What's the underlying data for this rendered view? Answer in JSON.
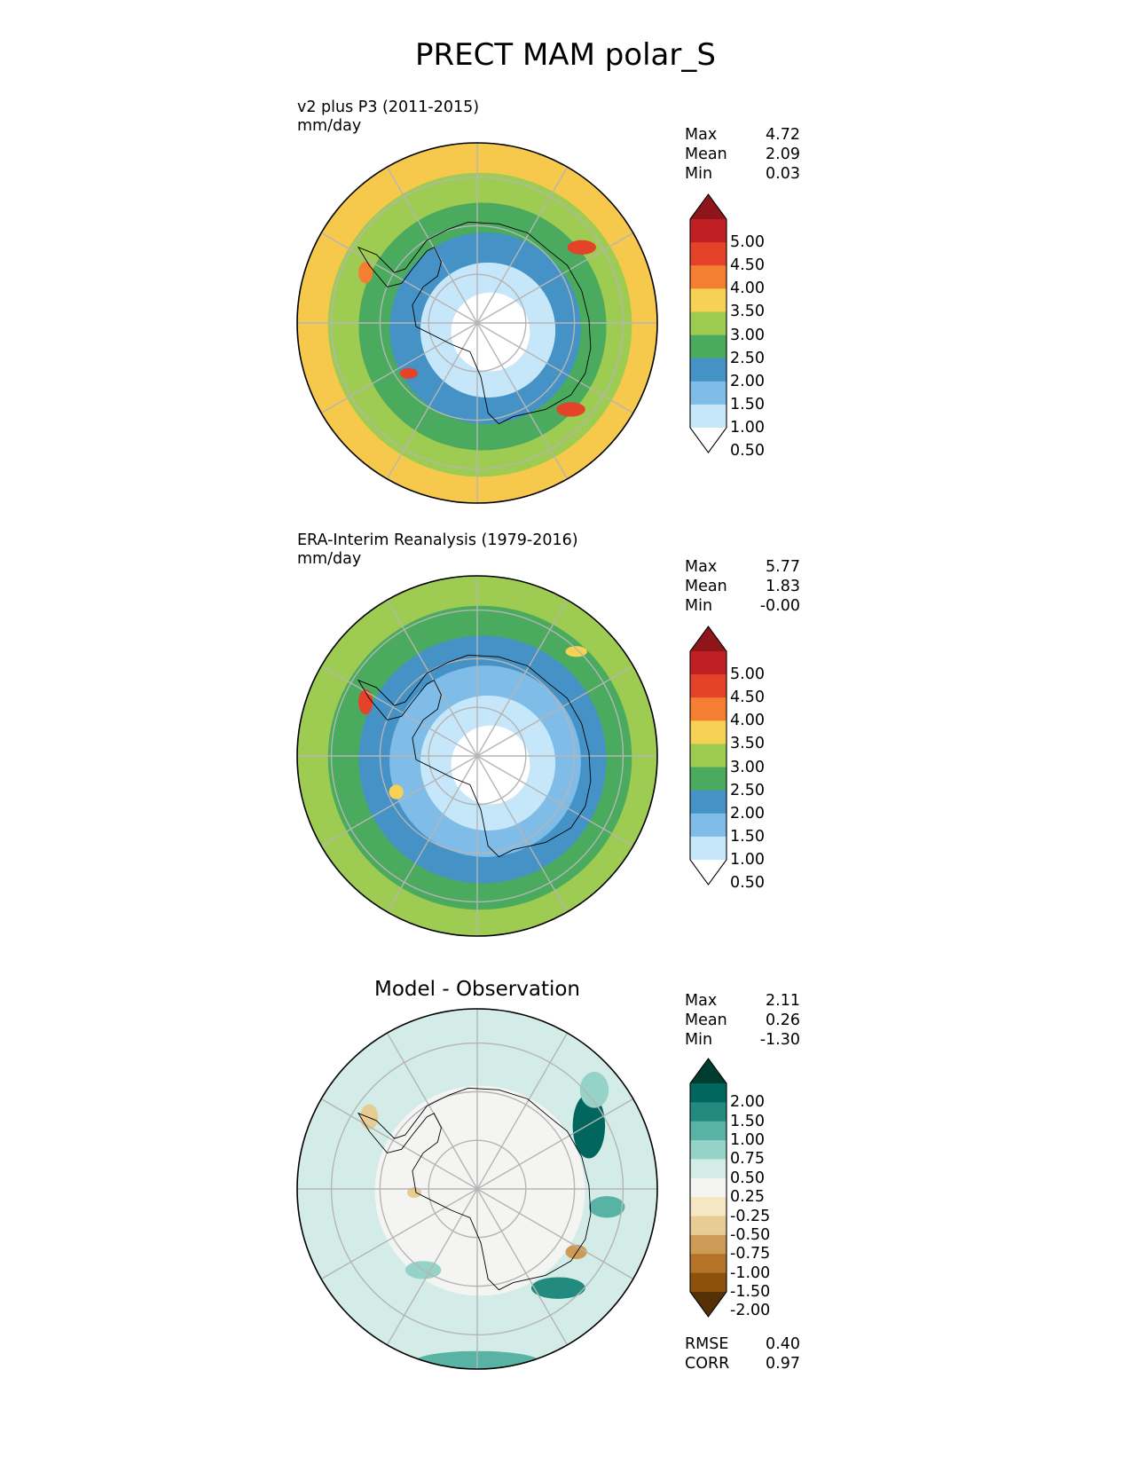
{
  "suptitle": "PRECT MAM polar_S",
  "chart_data": [
    {
      "type": "heatmap",
      "title": "v2 plus P3 (2011-2015)",
      "units": "mm/day",
      "projection": "south-polar-stereographic",
      "stats": [
        {
          "label": "Max",
          "value": "4.72"
        },
        {
          "label": "Mean",
          "value": "2.09"
        },
        {
          "label": "Min",
          "value": "0.03"
        }
      ],
      "colorbar": {
        "levels": [
          "0.50",
          "1.00",
          "1.50",
          "2.00",
          "2.50",
          "3.00",
          "3.50",
          "4.00",
          "4.50",
          "5.00"
        ],
        "colors": [
          "#ffffff",
          "#c6e7f9",
          "#7fbde8",
          "#4592c6",
          "#4aab5e",
          "#9ecb51",
          "#f7d153",
          "#f47f33",
          "#e4432a",
          "#c01f24",
          "#8e1519"
        ]
      },
      "rings": [
        {
          "lat": "-50°",
          "color": "#f6c94d"
        },
        {
          "lat": "-55°",
          "color": "#9ecb51"
        },
        {
          "lat": "-60°",
          "color": "#4aab5e"
        },
        {
          "lat": "-65°",
          "color": "#4592c6"
        },
        {
          "lat": "-70°",
          "color": "#c6e7f9"
        },
        {
          "lat": "-75°",
          "color": "#ffffff"
        }
      ]
    },
    {
      "type": "heatmap",
      "title": "ERA-Interim Reanalysis (1979-2016)",
      "units": "mm/day",
      "projection": "south-polar-stereographic",
      "stats": [
        {
          "label": "Max",
          "value": "5.77"
        },
        {
          "label": "Mean",
          "value": "1.83"
        },
        {
          "label": "Min",
          "value": "-0.00"
        }
      ],
      "colorbar": {
        "levels": [
          "0.50",
          "1.00",
          "1.50",
          "2.00",
          "2.50",
          "3.00",
          "3.50",
          "4.00",
          "4.50",
          "5.00"
        ],
        "colors": [
          "#ffffff",
          "#c6e7f9",
          "#7fbde8",
          "#4592c6",
          "#4aab5e",
          "#9ecb51",
          "#f7d153",
          "#f47f33",
          "#e4432a",
          "#c01f24",
          "#8e1519"
        ]
      },
      "rings": [
        {
          "lat": "-50°",
          "color": "#9ecb51"
        },
        {
          "lat": "-57°",
          "color": "#4aab5e"
        },
        {
          "lat": "-63°",
          "color": "#4592c6"
        },
        {
          "lat": "-67°",
          "color": "#7fbde8"
        },
        {
          "lat": "-71°",
          "color": "#c6e7f9"
        },
        {
          "lat": "-75°",
          "color": "#ffffff"
        }
      ]
    },
    {
      "type": "heatmap",
      "title": "Model - Observation",
      "units": "",
      "projection": "south-polar-stereographic",
      "stats": [
        {
          "label": "Max",
          "value": "2.11"
        },
        {
          "label": "Mean",
          "value": "0.26"
        },
        {
          "label": "Min",
          "value": "-1.30"
        }
      ],
      "metrics": [
        {
          "label": "RMSE",
          "value": "0.40"
        },
        {
          "label": "CORR",
          "value": "0.97"
        }
      ],
      "colorbar": {
        "levels": [
          "-2.00",
          "-1.50",
          "-1.00",
          "-0.75",
          "-0.50",
          "-0.25",
          "0.25",
          "0.50",
          "0.75",
          "1.00",
          "1.50",
          "2.00"
        ],
        "colors": [
          "#543005",
          "#8c510a",
          "#b37328",
          "#cd9b55",
          "#e7cd94",
          "#f5e6c4",
          "#f4f4f2",
          "#d3ece7",
          "#95d2c7",
          "#59b3a4",
          "#228a7e",
          "#01665e",
          "#003c30"
        ]
      },
      "rings": [
        {
          "lat": "-50°",
          "color": "#d3ece7"
        },
        {
          "lat": "-55°",
          "color": "#f4f4f2"
        }
      ]
    }
  ]
}
